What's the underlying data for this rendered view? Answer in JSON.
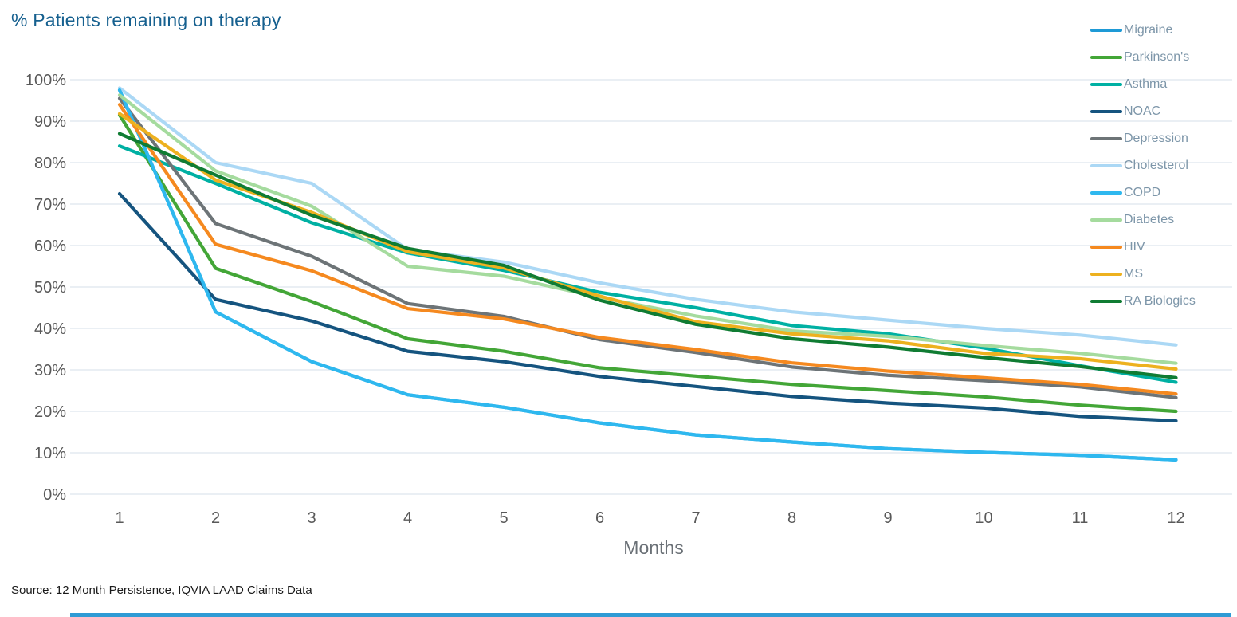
{
  "header": {
    "title": "% Patients remaining on therapy"
  },
  "footer": {
    "source": "Source:  12 Month Persistence, IQVIA LAAD Claims Data"
  },
  "style_colors": {
    "title": "#16608F",
    "tick_label": "#595959",
    "axis_title": "#6A7076",
    "legend_label": "#7D96A9",
    "gridline": "#E4EAF0",
    "accent_bar": "#2E9BD5",
    "source_text": "#1A1A1A",
    "background": "#FFFFFF"
  },
  "chart_data": {
    "type": "line",
    "title": "% Patients remaining on therapy",
    "xlabel": "Months",
    "ylabel": "% Patients remaining on therapy",
    "x": [
      1,
      2,
      3,
      4,
      5,
      6,
      7,
      8,
      9,
      10,
      11,
      12
    ],
    "ylim": [
      0,
      100
    ],
    "yticks": [
      0,
      10,
      20,
      30,
      40,
      50,
      60,
      70,
      80,
      90,
      100
    ],
    "ytick_suffix": "%",
    "grid": "horizontal",
    "legend_position": "top-right",
    "series": [
      {
        "name": "Migraine",
        "color": "#1E9AD6",
        "values": [
          97.5,
          44.0,
          32.0,
          24.0,
          21.0,
          17.2,
          14.3,
          12.6,
          11.0,
          10.1,
          9.4,
          8.3
        ]
      },
      {
        "name": "Parkinson's",
        "color": "#43A637",
        "values": [
          91.5,
          54.5,
          46.5,
          37.5,
          34.5,
          30.5,
          28.5,
          26.5,
          25.0,
          23.5,
          21.5,
          20.0
        ]
      },
      {
        "name": "Asthma",
        "color": "#00B0A3",
        "values": [
          84.0,
          75.0,
          65.5,
          58.2,
          54.0,
          48.7,
          45.0,
          40.7,
          38.7,
          35.3,
          31.0,
          27.0
        ]
      },
      {
        "name": "NOAC",
        "color": "#15547F",
        "values": [
          72.5,
          47.0,
          41.8,
          34.5,
          32.0,
          28.4,
          26.0,
          23.6,
          22.0,
          20.8,
          18.8,
          17.7
        ]
      },
      {
        "name": "Depression",
        "color": "#6D7477",
        "values": [
          95.5,
          65.3,
          57.4,
          46.0,
          42.9,
          37.3,
          34.2,
          30.7,
          28.7,
          27.4,
          25.9,
          23.3
        ]
      },
      {
        "name": "Cholesterol",
        "color": "#ABD8F5",
        "values": [
          98.0,
          80.0,
          75.0,
          59.0,
          56.0,
          51.0,
          47.0,
          44.0,
          42.0,
          40.0,
          38.4,
          36.0
        ]
      },
      {
        "name": "COPD",
        "color": "#2EB8EF",
        "values": [
          97.5,
          44.0,
          32.0,
          24.0,
          21.0,
          17.2,
          14.3,
          12.6,
          11.0,
          10.1,
          9.4,
          8.3
        ]
      },
      {
        "name": "Diabetes",
        "color": "#A5DB9E",
        "values": [
          96.3,
          78.0,
          69.5,
          55.0,
          52.6,
          47.5,
          43.0,
          39.4,
          38.1,
          35.9,
          34.0,
          31.6
        ]
      },
      {
        "name": "HIV",
        "color": "#F5891F",
        "values": [
          94.0,
          60.3,
          53.9,
          44.8,
          42.3,
          37.8,
          34.9,
          31.7,
          29.7,
          28.1,
          26.5,
          24.2
        ]
      },
      {
        "name": "MS",
        "color": "#EDB11F",
        "values": [
          91.8,
          75.8,
          68.0,
          58.5,
          54.6,
          47.8,
          41.6,
          38.7,
          37.0,
          34.0,
          32.7,
          30.2
        ]
      },
      {
        "name": "RA Biologics",
        "color": "#107C33",
        "values": [
          87.0,
          77.0,
          67.3,
          59.3,
          55.2,
          46.8,
          41.0,
          37.5,
          35.5,
          33.0,
          30.8,
          28.1
        ]
      }
    ]
  }
}
